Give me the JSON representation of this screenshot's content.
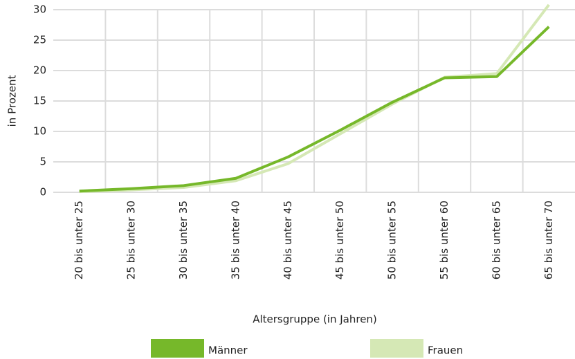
{
  "chart_data": {
    "type": "line",
    "categories": [
      "20 bis unter 25",
      "25 bis unter 30",
      "30 bis unter 35",
      "35 bis unter 40",
      "40 bis unter 45",
      "45 bis unter 50",
      "50 bis unter 55",
      "55 bis unter 60",
      "60 bis unter 65",
      "65 bis unter 70"
    ],
    "series": [
      {
        "name": "Männer",
        "color": "#76b82a",
        "values": [
          0.2,
          0.6,
          1.1,
          2.3,
          5.8,
          10.2,
          14.8,
          18.8,
          19.0,
          27.2
        ]
      },
      {
        "name": "Frauen",
        "color": "#d5e8b5",
        "values": [
          0.1,
          0.4,
          0.8,
          1.9,
          4.7,
          9.6,
          14.5,
          18.9,
          19.5,
          30.8
        ]
      }
    ],
    "xlabel": "Altersgruppe (in Jahren)",
    "ylabel": "in Prozent",
    "ylim": [
      0,
      30
    ],
    "yticks": [
      0,
      5,
      10,
      15,
      20,
      25,
      30
    ],
    "grid": true
  }
}
